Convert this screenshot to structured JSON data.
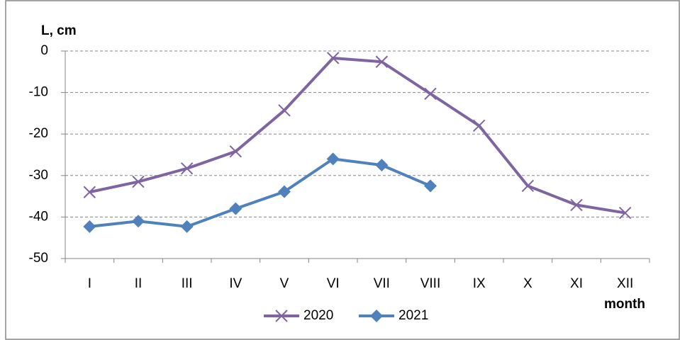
{
  "chart_data": {
    "type": "line",
    "y_label": "L, cm",
    "x_label": "month",
    "categories": [
      "I",
      "II",
      "III",
      "IV",
      "V",
      "VI",
      "VII",
      "VIII",
      "IX",
      "X",
      "XI",
      "XII"
    ],
    "series": [
      {
        "name": "2020",
        "color": "#8064a2",
        "marker": "x",
        "values": [
          -34,
          -31.5,
          -28.3,
          -24.2,
          -14.3,
          -1.7,
          -2.6,
          -10.3,
          -18,
          -32.5,
          -37.1,
          -39
        ]
      },
      {
        "name": "2021",
        "color": "#4f81bd",
        "marker": "diamond",
        "values": [
          -42.3,
          -41,
          -42.3,
          -38,
          -33.9,
          -26,
          -27.5,
          -32.5,
          null,
          null,
          null,
          null
        ]
      }
    ],
    "ylim": [
      -50,
      0
    ],
    "yticks": [
      -50,
      -40,
      -30,
      -20,
      -10,
      0
    ],
    "grid": true,
    "legend": "bottom"
  }
}
